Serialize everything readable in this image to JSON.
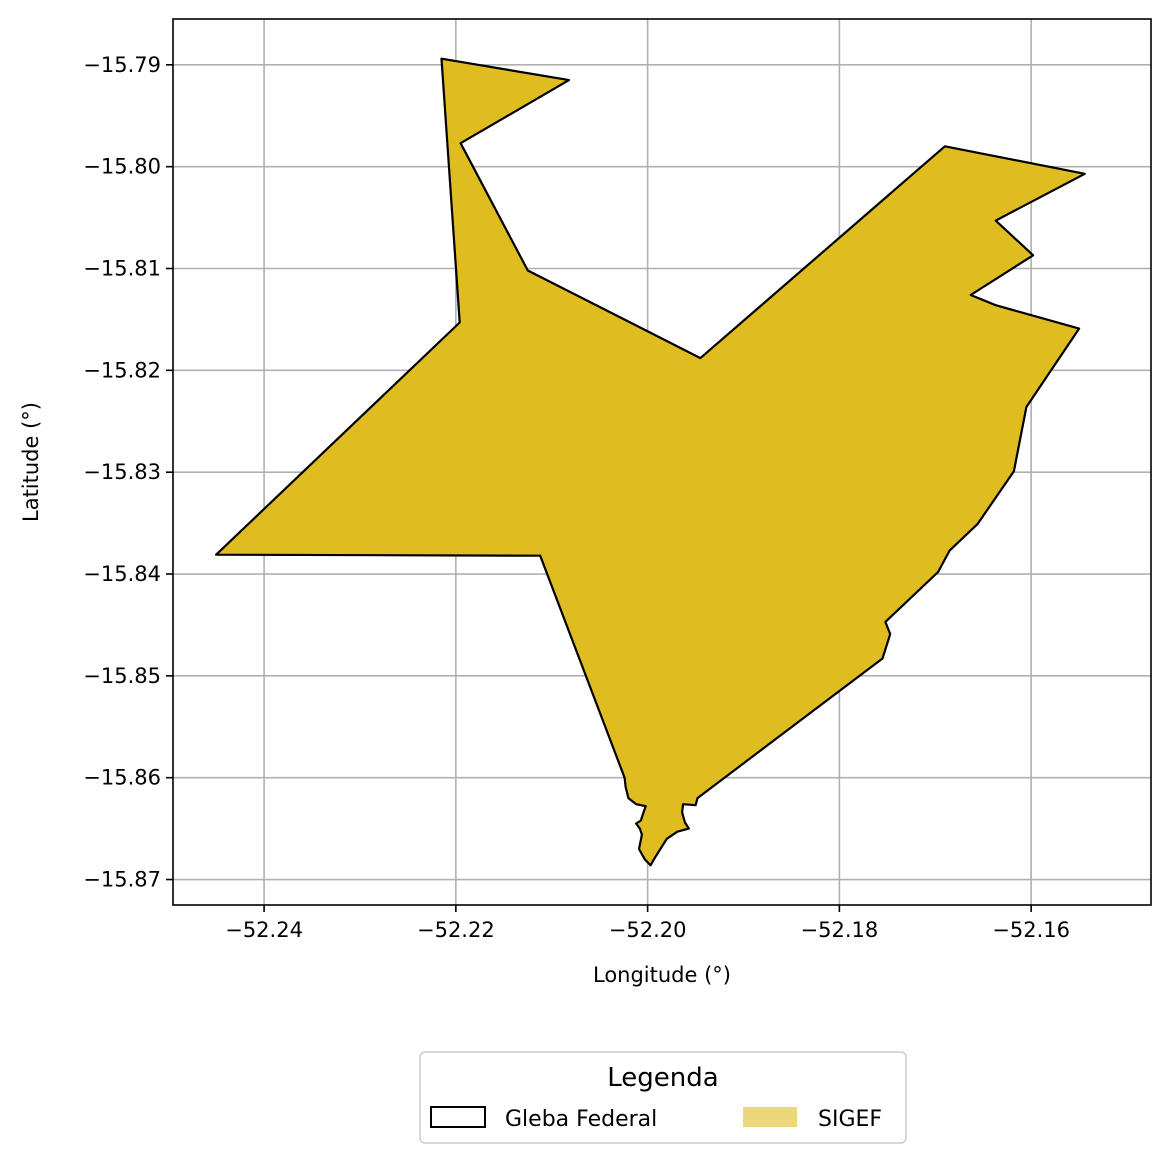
{
  "chart_data": {
    "type": "map",
    "xlabel": "Longitude (°)",
    "ylabel": "Latitude (°)",
    "xlim": [
      -52.2495,
      -52.1475
    ],
    "ylim": [
      -15.8725,
      -15.7855
    ],
    "grid": true,
    "x_ticks": [
      -52.24,
      -52.22,
      -52.2,
      -52.18,
      -52.16
    ],
    "x_tick_labels": [
      "−52.24",
      "−52.22",
      "−52.20",
      "−52.18",
      "−52.16"
    ],
    "y_ticks": [
      -15.79,
      -15.8,
      -15.81,
      -15.82,
      -15.83,
      -15.84,
      -15.85,
      -15.86,
      -15.87
    ],
    "y_tick_labels": [
      "−15.79",
      "−15.80",
      "−15.81",
      "−15.82",
      "−15.83",
      "−15.84",
      "−15.85",
      "−15.86",
      "−15.87"
    ],
    "polygon": [
      [
        -52.2215,
        -15.7894
      ],
      [
        -52.2082,
        -15.7915
      ],
      [
        -52.2195,
        -15.7977
      ],
      [
        -52.2125,
        -15.8102
      ],
      [
        -52.1945,
        -15.8188
      ],
      [
        -52.169,
        -15.798
      ],
      [
        -52.1544,
        -15.8007
      ],
      [
        -52.1637,
        -15.8053
      ],
      [
        -52.1598,
        -15.8087
      ],
      [
        -52.1663,
        -15.8126
      ],
      [
        -52.1637,
        -15.8136
      ],
      [
        -52.155,
        -15.8159
      ],
      [
        -52.1605,
        -15.8236
      ],
      [
        -52.1618,
        -15.8299
      ],
      [
        -52.1656,
        -15.8351
      ],
      [
        -52.1685,
        -15.8377
      ],
      [
        -52.1697,
        -15.8398
      ],
      [
        -52.1752,
        -15.8447
      ],
      [
        -52.1747,
        -15.8459
      ],
      [
        -52.1755,
        -15.8483
      ],
      [
        -52.1948,
        -15.862
      ],
      [
        -52.195,
        -15.8627
      ],
      [
        -52.1963,
        -15.8626
      ],
      [
        -52.1964,
        -15.8634
      ],
      [
        -52.1961,
        -15.8644
      ],
      [
        -52.1957,
        -15.865
      ],
      [
        -52.1969,
        -15.8653
      ],
      [
        -52.198,
        -15.866
      ],
      [
        -52.1992,
        -15.8678
      ],
      [
        -52.1997,
        -15.8686
      ],
      [
        -52.2003,
        -15.868
      ],
      [
        -52.2009,
        -15.867
      ],
      [
        -52.2006,
        -15.8656
      ],
      [
        -52.2008,
        -15.865
      ],
      [
        -52.2012,
        -15.8645
      ],
      [
        -52.2007,
        -15.8642
      ],
      [
        -52.2005,
        -15.8636
      ],
      [
        -52.2002,
        -15.8628
      ],
      [
        -52.2012,
        -15.8626
      ],
      [
        -52.202,
        -15.862
      ],
      [
        -52.2023,
        -15.8609
      ],
      [
        -52.2024,
        -15.86
      ],
      [
        -52.2112,
        -15.8382
      ],
      [
        -52.245,
        -15.8381
      ],
      [
        -52.2196,
        -15.8153
      ]
    ],
    "legend": {
      "title": "Legenda",
      "placement": "bottom-center",
      "entries": [
        {
          "label": "Gleba Federal",
          "style": "outline",
          "edge_color": "#000000"
        },
        {
          "label": "SIGEF",
          "style": "fill",
          "color": "#dfbd21",
          "alpha": 0.6
        }
      ]
    },
    "colors": {
      "polygon_fill": "#dfbd21",
      "polygon_edge": "#000000",
      "grid": "#b0b0b0"
    }
  }
}
